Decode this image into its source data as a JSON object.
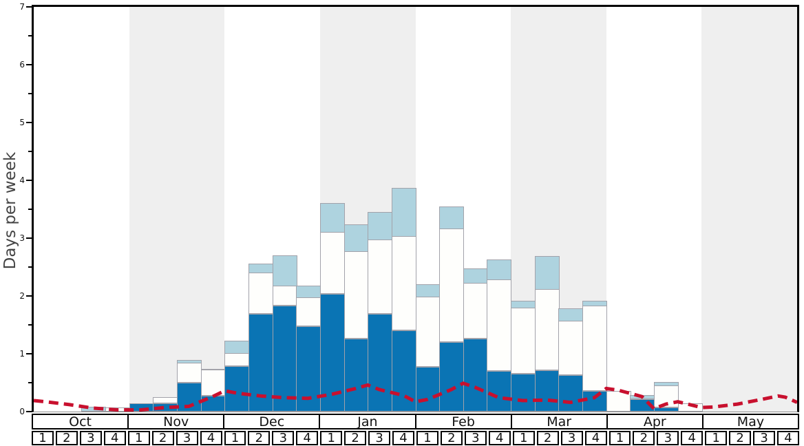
{
  "chart_data": {
    "type": "bar",
    "stacked": true,
    "title": "",
    "ylabel": "Days per week",
    "ylim": [
      0,
      7
    ],
    "y_major_ticks": [
      0,
      1,
      2,
      3,
      4,
      5,
      6,
      7
    ],
    "y_minor_step": 0.5,
    "grid": "off",
    "legend": "none",
    "months": [
      "Oct",
      "Nov",
      "Dec",
      "Jan",
      "Feb",
      "Mar",
      "Apr",
      "May"
    ],
    "week_labels": [
      "1",
      "2",
      "3",
      "4"
    ],
    "shaded_months": [
      "Nov",
      "Jan",
      "Mar",
      "May"
    ],
    "series": [
      {
        "id": "dark_blue_days",
        "color": "#0a74b4",
        "cumulative_top": [
          0,
          0,
          0,
          0,
          0.14,
          0.14,
          0.5,
          0.27,
          0.78,
          1.69,
          1.83,
          1.48,
          2.04,
          1.26,
          1.69,
          1.4,
          0.77,
          1.2,
          1.26,
          0.7,
          0.65,
          0.71,
          0.63,
          0.36,
          0,
          0.21,
          0.07,
          0,
          0,
          0,
          0,
          0
        ]
      },
      {
        "id": "white_days",
        "color": "#fefefc",
        "cumulative_top": [
          0,
          0,
          0,
          0.06,
          0.14,
          0.24,
          0.83,
          0.71,
          1.0,
          2.39,
          2.17,
          1.96,
          3.1,
          2.76,
          2.97,
          3.02,
          1.98,
          3.16,
          2.21,
          2.27,
          1.79,
          2.11,
          1.56,
          1.82,
          0.35,
          0.22,
          0.44,
          0.13,
          0,
          0,
          0,
          0
        ]
      },
      {
        "id": "light_blue_days",
        "color": "#aed3df",
        "cumulative_top": [
          0,
          0,
          0.07,
          0.06,
          0.14,
          0.24,
          0.88,
          0.73,
          1.21,
          2.55,
          2.69,
          2.17,
          3.59,
          3.23,
          3.44,
          3.86,
          2.19,
          3.53,
          2.46,
          2.62,
          1.91,
          2.68,
          1.78,
          1.91,
          0.35,
          0.28,
          0.5,
          0.13,
          0,
          0,
          0,
          0
        ]
      }
    ],
    "red_line": {
      "id": "red_dashed_line",
      "color": "#c8102e",
      "dash": [
        14,
        8
      ],
      "width": 5,
      "points_week_x_value": [
        [
          0,
          0.19
        ],
        [
          0.5,
          0.17
        ],
        [
          1.5,
          0.12
        ],
        [
          2.5,
          0.06
        ],
        [
          3.5,
          0.03
        ],
        [
          4.5,
          0.03
        ],
        [
          5.5,
          0.07
        ],
        [
          6.5,
          0.09
        ],
        [
          7.5,
          0.26
        ],
        [
          8,
          0.36
        ],
        [
          8.5,
          0.32
        ],
        [
          9.5,
          0.27
        ],
        [
          10.5,
          0.24
        ],
        [
          11.5,
          0.23
        ],
        [
          12.5,
          0.3
        ],
        [
          13.5,
          0.4
        ],
        [
          14,
          0.46
        ],
        [
          14.5,
          0.38
        ],
        [
          15.5,
          0.28
        ],
        [
          16,
          0.17
        ],
        [
          16.5,
          0.21
        ],
        [
          17.5,
          0.38
        ],
        [
          18,
          0.49
        ],
        [
          18.5,
          0.42
        ],
        [
          19.5,
          0.24
        ],
        [
          20.5,
          0.19
        ],
        [
          21.5,
          0.2
        ],
        [
          22.5,
          0.16
        ],
        [
          23.5,
          0.24
        ],
        [
          24,
          0.4
        ],
        [
          24.5,
          0.37
        ],
        [
          25.5,
          0.26
        ],
        [
          26,
          0.05
        ],
        [
          26.5,
          0.13
        ],
        [
          27,
          0.17
        ],
        [
          28,
          0.07
        ],
        [
          28.5,
          0.08
        ],
        [
          29.5,
          0.13
        ],
        [
          30.5,
          0.21
        ],
        [
          31.2,
          0.27
        ],
        [
          31.5,
          0.25
        ],
        [
          32,
          0.16
        ]
      ]
    },
    "colors": {
      "shaded_band": "#efefef",
      "bar_border": "#a2a2aa",
      "axis_frame": "#000000",
      "zero_line": "#8a8a8a",
      "tick_text": "#111111",
      "ylabel_text": "#444444"
    }
  }
}
